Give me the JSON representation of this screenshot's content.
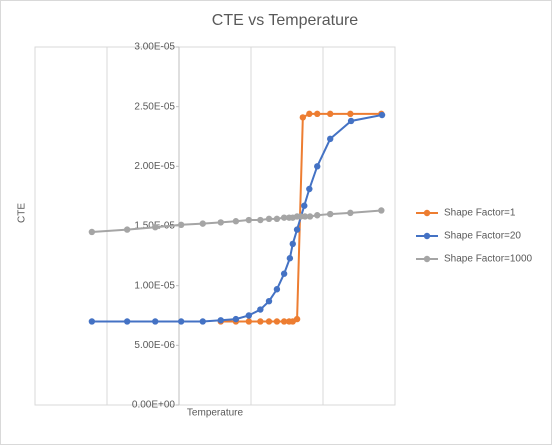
{
  "chart_data": {
    "type": "scatter",
    "title": "CTE vs Temperature",
    "x_label": "Temperature",
    "y_label": "CTE",
    "xlim": [
      -200,
      300
    ],
    "xticks": [
      -100,
      0,
      100,
      200
    ],
    "ylim": [
      0,
      3e-05
    ],
    "yticks": [
      {
        "value": 0,
        "label": "0.00E+00"
      },
      {
        "value": 5e-06,
        "label": "5.00E-06"
      },
      {
        "value": 1e-05,
        "label": "1.00E-05"
      },
      {
        "value": 1.5e-05,
        "label": "1.50E-05"
      },
      {
        "value": 2e-05,
        "label": "2.00E-05"
      },
      {
        "value": 2.5e-05,
        "label": "2.50E-05"
      },
      {
        "value": 3e-05,
        "label": "3.00E-05"
      }
    ],
    "grid": true,
    "series": [
      {
        "name": "Shape Factor=1",
        "color": "#ed7d31",
        "x": [
          58,
          79,
          97,
          113,
          125,
          136,
          146,
          153,
          158,
          164,
          172,
          181,
          192,
          210,
          238,
          281
        ],
        "values": [
          7e-06,
          7e-06,
          7e-06,
          7e-06,
          7e-06,
          7e-06,
          7e-06,
          7e-06,
          7e-06,
          7.2e-06,
          2.41e-05,
          2.44e-05,
          2.44e-05,
          2.44e-05,
          2.44e-05,
          2.44e-05
        ]
      },
      {
        "name": "Shape Factor=20",
        "color": "#4472c4",
        "x": [
          -121,
          -72,
          -33,
          3,
          33,
          58,
          79,
          97,
          113,
          125,
          136,
          146,
          154,
          158,
          164,
          174,
          181,
          192,
          210,
          239,
          282
        ],
        "values": [
          7e-06,
          7e-06,
          7e-06,
          7e-06,
          7e-06,
          7.1e-06,
          7.2e-06,
          7.5e-06,
          8e-06,
          8.7e-06,
          9.7e-06,
          1.1e-05,
          1.23e-05,
          1.35e-05,
          1.47e-05,
          1.67e-05,
          1.81e-05,
          2e-05,
          2.23e-05,
          2.38e-05,
          2.43e-05
        ]
      },
      {
        "name": "Shape Factor=1000",
        "color": "#a5a5a5",
        "x": [
          -121,
          -72,
          -33,
          3,
          33,
          58,
          79,
          97,
          113,
          125,
          136,
          146,
          153,
          158,
          164,
          169,
          175,
          182,
          192,
          210,
          238,
          281
        ],
        "values": [
          1.45e-05,
          1.47e-05,
          1.49e-05,
          1.51e-05,
          1.52e-05,
          1.53e-05,
          1.54e-05,
          1.55e-05,
          1.55e-05,
          1.56e-05,
          1.56e-05,
          1.57e-05,
          1.57e-05,
          1.57e-05,
          1.58e-05,
          1.58e-05,
          1.58e-05,
          1.58e-05,
          1.59e-05,
          1.6e-05,
          1.61e-05,
          1.63e-05
        ]
      }
    ]
  }
}
